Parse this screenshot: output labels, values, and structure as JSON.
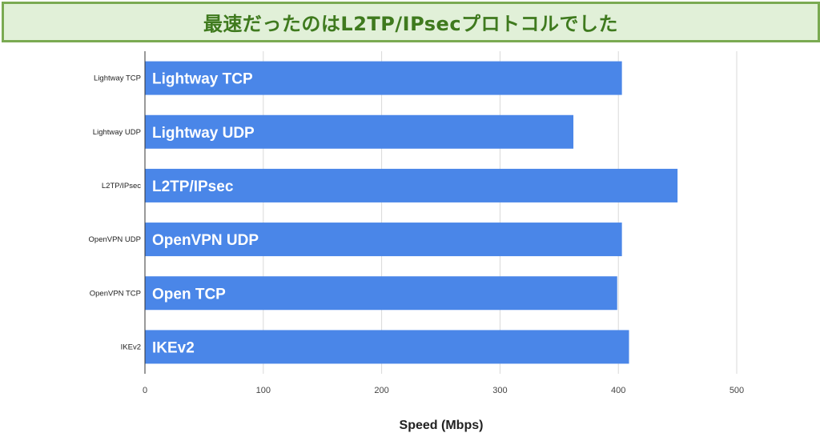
{
  "banner": {
    "title": "最速だったのはL2TP/IPsecプロトコルでした",
    "bg_color": "#e1f0d8",
    "border_color": "#7aaa52",
    "text_color": "#3f7a1e"
  },
  "chart_data": {
    "type": "bar",
    "orientation": "horizontal",
    "categories": [
      "Lightway TCP",
      "Lightway UDP",
      "L2TP/IPsec",
      "OpenVPN UDP",
      "OpenVPN TCP",
      "IKEv2"
    ],
    "bar_labels": [
      "Lightway TCP",
      "Lightway UDP",
      "L2TP/IPsec",
      "OpenVPN UDP",
      "Open TCP",
      "IKEv2"
    ],
    "values": [
      403,
      362,
      450,
      403,
      399,
      409
    ],
    "xlabel": "Speed (Mbps)",
    "ylabel": "",
    "xlim": [
      0,
      500
    ],
    "xticks": [
      0,
      100,
      200,
      300,
      400,
      500
    ],
    "grid": true,
    "legend": "none",
    "bar_color": "#4a86e8",
    "grid_color": "#d9d9d9"
  }
}
